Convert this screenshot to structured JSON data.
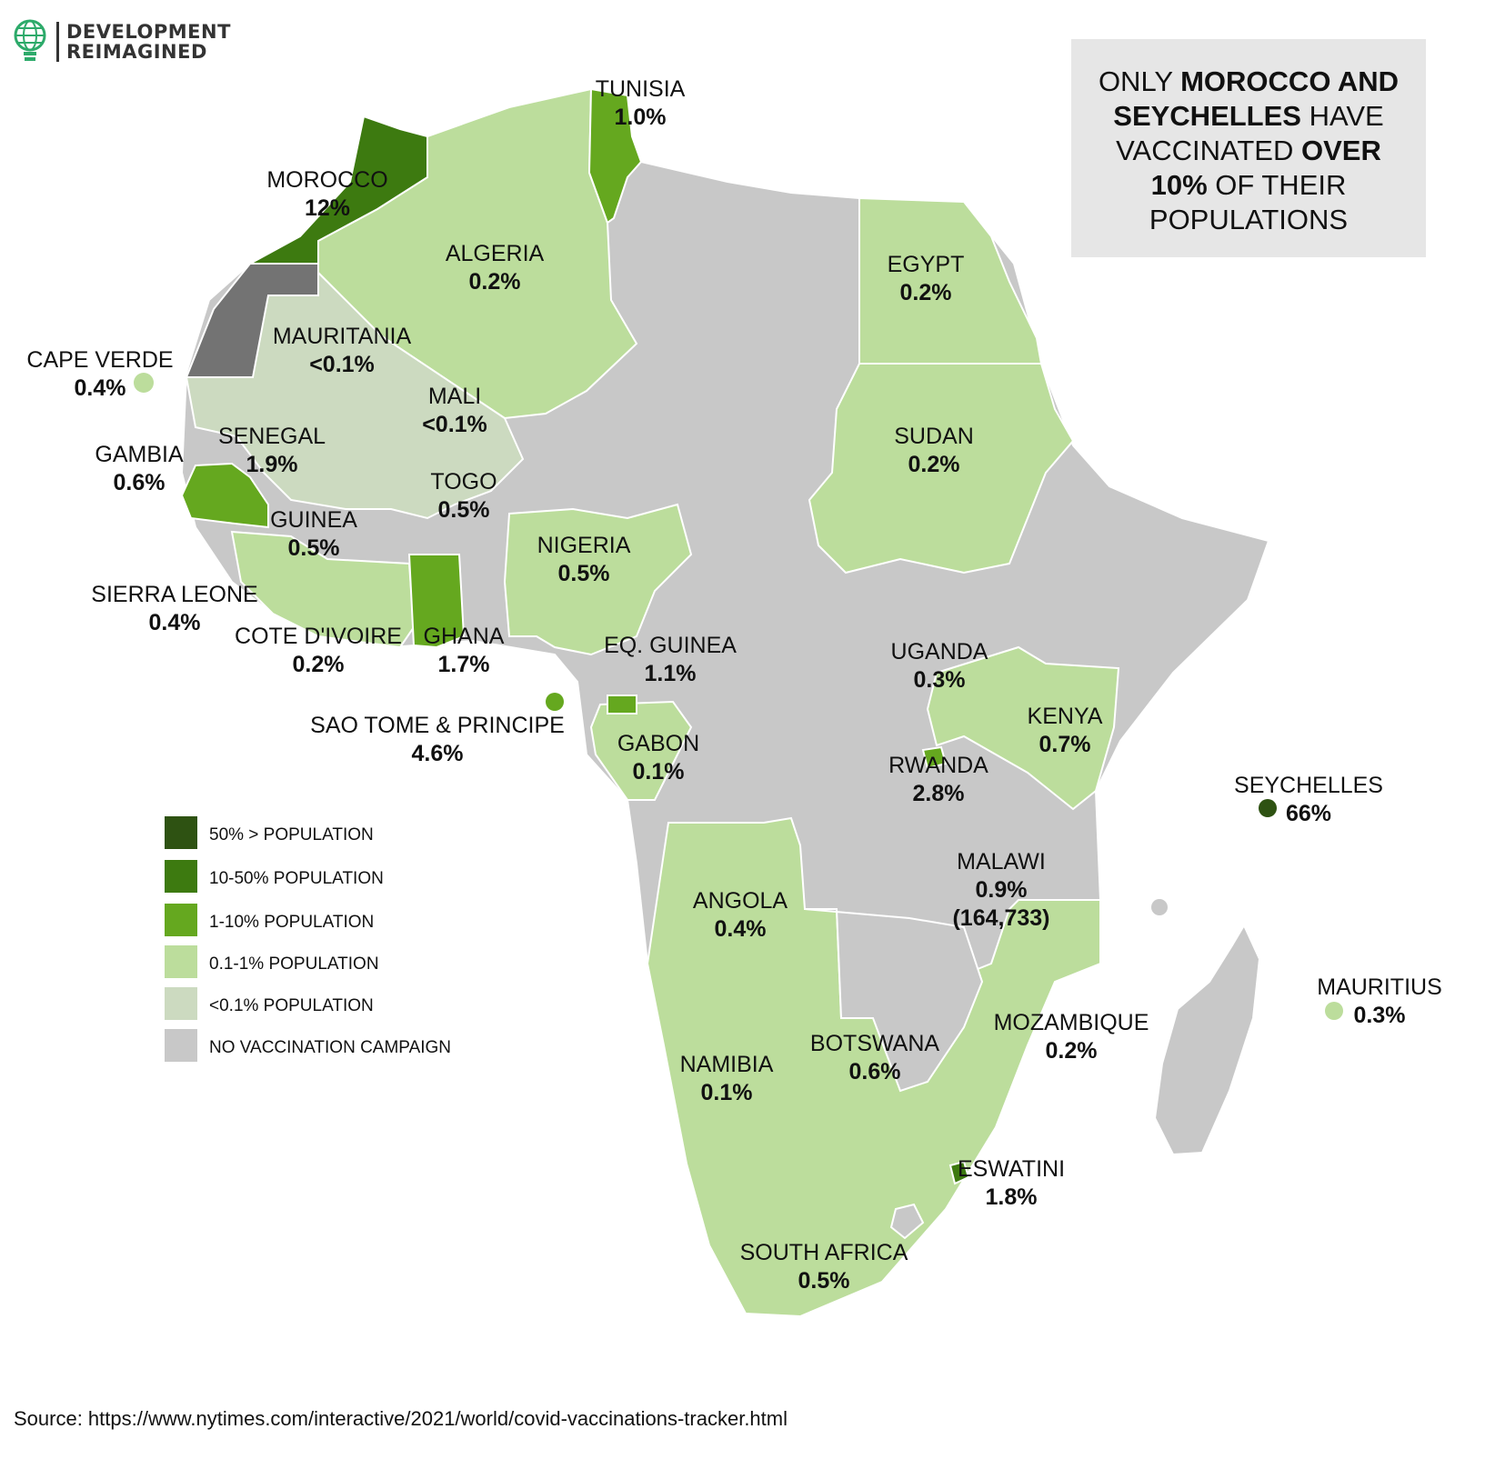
{
  "logo": {
    "line1": "DEVELOPMENT",
    "line2": "REIMAGINED"
  },
  "headline": {
    "part1": "ONLY ",
    "bold1": "MOROCCO AND SEYCHELLES",
    "part2": " HAVE VACCINATED ",
    "bold2": "OVER 10%",
    "part3": " OF THEIR POPULATIONS"
  },
  "colors": {
    "over50": "#2e5212",
    "p10_50": "#3d7a10",
    "p1_10": "#65a81f",
    "p01_1": "#bcdd9c",
    "under01": "#ccdac0",
    "none": "#c8c8c8",
    "westernSahara": "#737373"
  },
  "legend": [
    {
      "label": "50% > POPULATION",
      "color": "#2e5212"
    },
    {
      "label": "10-50% POPULATION",
      "color": "#3d7a10"
    },
    {
      "label": "1-10% POPULATION",
      "color": "#65a81f"
    },
    {
      "label": "0.1-1% POPULATION",
      "color": "#bcdd9c"
    },
    {
      "label": "<0.1% POPULATION",
      "color": "#ccdac0"
    },
    {
      "label": "NO VACCINATION CAMPAIGN",
      "color": "#c8c8c8"
    }
  ],
  "countries": {
    "tunisia": {
      "name": "TUNISIA",
      "value": "1.0%"
    },
    "morocco": {
      "name": "MOROCCO",
      "value": "12%"
    },
    "algeria": {
      "name": "ALGERIA",
      "value": "0.2%"
    },
    "egypt": {
      "name": "EGYPT",
      "value": "0.2%"
    },
    "mauritania": {
      "name": "MAURITANIA",
      "value": "<0.1%"
    },
    "cape_verde": {
      "name": "CAPE VERDE",
      "value": "0.4%"
    },
    "mali": {
      "name": "MALI",
      "value": "<0.1%"
    },
    "senegal": {
      "name": "SENEGAL",
      "value": "1.9%"
    },
    "gambia": {
      "name": "GAMBIA",
      "value": "0.6%"
    },
    "sudan": {
      "name": "SUDAN",
      "value": "0.2%"
    },
    "togo": {
      "name": "TOGO",
      "value": "0.5%"
    },
    "guinea": {
      "name": "GUINEA",
      "value": "0.5%"
    },
    "nigeria": {
      "name": "NIGERIA",
      "value": "0.5%"
    },
    "sierra_leone": {
      "name": "SIERRA LEONE",
      "value": "0.4%"
    },
    "cote_divoire": {
      "name": "COTE D'IVOIRE",
      "value": "0.2%"
    },
    "ghana": {
      "name": "GHANA",
      "value": "1.7%"
    },
    "eq_guinea": {
      "name": "EQ. GUINEA",
      "value": "1.1%"
    },
    "uganda": {
      "name": "UGANDA",
      "value": "0.3%"
    },
    "sao_tome": {
      "name": "SAO TOME & PRINCIPE",
      "value": "4.6%"
    },
    "kenya": {
      "name": "KENYA",
      "value": "0.7%"
    },
    "gabon": {
      "name": "GABON",
      "value": "0.1%"
    },
    "rwanda": {
      "name": "RWANDA",
      "value": "2.8%"
    },
    "seychelles": {
      "name": "SEYCHELLES",
      "value": "66%"
    },
    "malawi": {
      "name": "MALAWI",
      "value": "0.9%",
      "extra": "(164,733)"
    },
    "angola": {
      "name": "ANGOLA",
      "value": "0.4%"
    },
    "mauritius": {
      "name": "MAURITIUS",
      "value": "0.3%"
    },
    "mozambique": {
      "name": "MOZAMBIQUE",
      "value": "0.2%"
    },
    "botswana": {
      "name": "BOTSWANA",
      "value": "0.6%"
    },
    "namibia": {
      "name": "NAMIBIA",
      "value": "0.1%"
    },
    "eswatini": {
      "name": "ESWATINI",
      "value": "1.8%"
    },
    "south_africa": {
      "name": "SOUTH AFRICA",
      "value": "0.5%"
    }
  },
  "source": "Source: https://www.nytimes.com/interactive/2021/world/covid-vaccinations-tracker.html"
}
